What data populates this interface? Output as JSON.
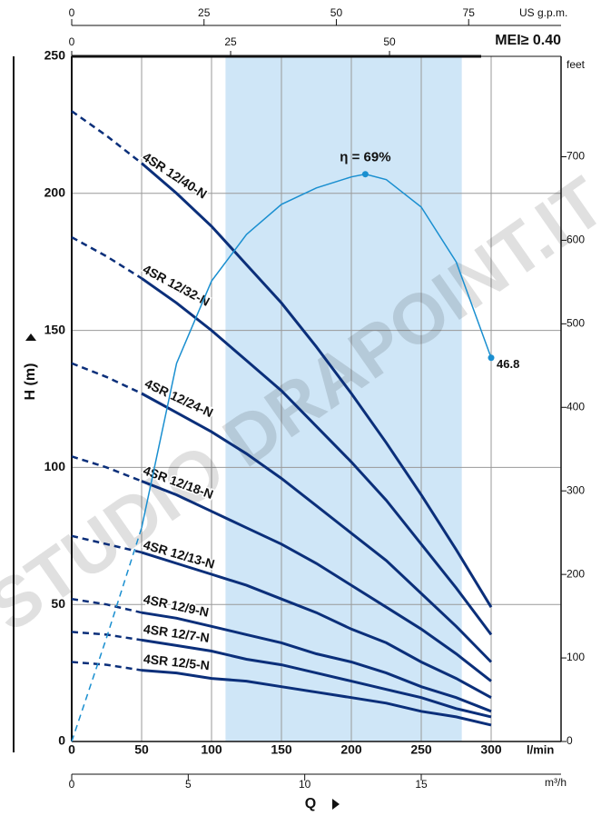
{
  "chart_data": {
    "type": "line",
    "x": [
      0,
      25,
      50,
      75,
      100,
      125,
      150,
      175,
      200,
      225,
      250,
      275,
      300
    ],
    "xlim": [
      0,
      350
    ],
    "xticks": [
      0,
      50,
      100,
      150,
      200,
      250,
      300
    ],
    "xlabel": "l/min",
    "x_title": "Q",
    "ylim": [
      0,
      250
    ],
    "yticks": [
      0,
      50,
      100,
      150,
      200,
      250
    ],
    "ylabel": "H (m)",
    "y2lim": [
      0,
      820.2
    ],
    "y2ticks": [
      0,
      100,
      200,
      300,
      400,
      500,
      600,
      700
    ],
    "y2label": "feet",
    "top_axis": {
      "label": "US g.p.m.",
      "lim": [
        0,
        92.46
      ],
      "ticks": [
        0,
        25,
        50,
        75
      ]
    },
    "top_axis2": {
      "lim": [
        0,
        76.99
      ],
      "ticks": [
        0,
        25,
        50
      ]
    },
    "bottom_axis2": {
      "label": "m³/h",
      "lim": [
        0,
        21
      ],
      "ticks": [
        0,
        5,
        10,
        15
      ]
    },
    "mei": "MEI≥ 0.40",
    "grid": true,
    "highlight": [
      110,
      279
    ],
    "series": [
      {
        "name": "4SR 12/40-N",
        "color": "#0b2f7a",
        "dashed": [
          230,
          221,
          211,
          null,
          null,
          null,
          null,
          null,
          null,
          null,
          null,
          null,
          null
        ],
        "values": [
          null,
          null,
          211,
          200,
          188,
          174,
          160,
          144,
          127,
          109,
          90,
          70,
          49
        ]
      },
      {
        "name": "4SR 12/32-N",
        "color": "#0b2f7a",
        "dashed": [
          184,
          177,
          169,
          null,
          null,
          null,
          null,
          null,
          null,
          null,
          null,
          null,
          null
        ],
        "values": [
          null,
          null,
          169,
          160,
          150,
          139,
          128,
          115,
          102,
          88,
          72,
          56,
          39
        ]
      },
      {
        "name": "4SR 12/24-N",
        "color": "#0b2f7a",
        "dashed": [
          138,
          133,
          127,
          null,
          null,
          null,
          null,
          null,
          null,
          null,
          null,
          null,
          null
        ],
        "values": [
          null,
          null,
          127,
          120,
          113,
          105,
          96,
          86,
          76,
          66,
          54,
          42,
          29
        ]
      },
      {
        "name": "4SR 12/18-N",
        "color": "#0b2f7a",
        "dashed": [
          104,
          100,
          95,
          null,
          null,
          null,
          null,
          null,
          null,
          null,
          null,
          null,
          null
        ],
        "values": [
          null,
          null,
          95,
          90,
          84,
          78,
          72,
          65,
          57,
          49,
          41,
          32,
          22
        ]
      },
      {
        "name": "4SR 12/13-N",
        "color": "#0b2f7a",
        "dashed": [
          75,
          72,
          69,
          null,
          null,
          null,
          null,
          null,
          null,
          null,
          null,
          null,
          null
        ],
        "values": [
          null,
          null,
          69,
          65,
          61,
          57,
          52,
          47,
          41,
          36,
          29,
          23,
          16
        ]
      },
      {
        "name": "4SR 12/9-N",
        "color": "#0b2f7a",
        "dashed": [
          52,
          50,
          47,
          null,
          null,
          null,
          null,
          null,
          null,
          null,
          null,
          null,
          null
        ],
        "values": [
          null,
          null,
          47,
          45,
          42,
          39,
          36,
          32,
          29,
          25,
          20,
          16,
          11
        ]
      },
      {
        "name": "4SR 12/7-N",
        "color": "#0b2f7a",
        "dashed": [
          40,
          39,
          37,
          null,
          null,
          null,
          null,
          null,
          null,
          null,
          null,
          null,
          null
        ],
        "values": [
          null,
          null,
          37,
          35,
          33,
          30,
          28,
          25,
          22,
          19,
          16,
          12,
          9
        ]
      },
      {
        "name": "4SR 12/5-N",
        "color": "#0b2f7a",
        "dashed": [
          29,
          28,
          26,
          null,
          null,
          null,
          null,
          null,
          null,
          null,
          null,
          null,
          null
        ],
        "values": [
          null,
          null,
          26,
          25,
          23,
          22,
          20,
          18,
          16,
          14,
          11,
          9,
          6
        ]
      }
    ],
    "efficiency": {
      "color": "#1a8fd0",
      "x": [
        0,
        25,
        50,
        75,
        100,
        125,
        150,
        175,
        200,
        210,
        225,
        250,
        275,
        300
      ],
      "dashed": [
        0,
        38,
        78,
        null,
        null,
        null,
        null,
        null,
        null,
        null,
        null,
        null,
        null,
        null
      ],
      "values": [
        null,
        null,
        78,
        138,
        168,
        185,
        196,
        202,
        206,
        207,
        205,
        195,
        175,
        140
      ],
      "peak_label": "η = 69%",
      "end_label": "46.8"
    },
    "watermark": "STUDIO DRAPOINT.IT"
  }
}
